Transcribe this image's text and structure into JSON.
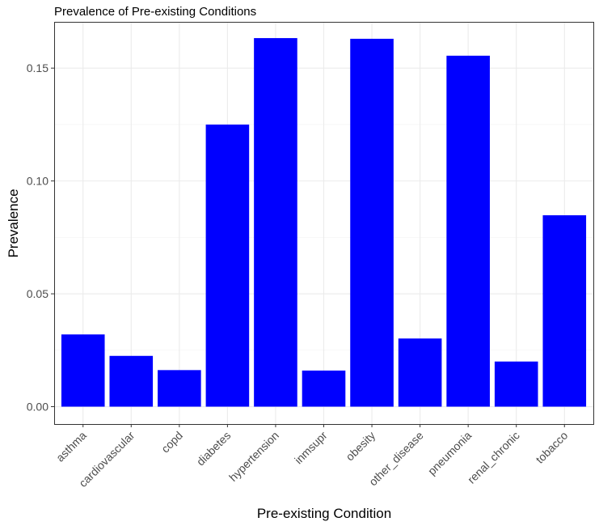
{
  "chart_data": {
    "type": "bar",
    "title": "Prevalence of Pre-existing Conditions",
    "xlabel": "Pre-existing Condition",
    "ylabel": "Prevalence",
    "categories": [
      "asthma",
      "cardiovascular",
      "copd",
      "diabetes",
      "hypertension",
      "inmsupr",
      "obesity",
      "other_disease",
      "pneumonia",
      "renal_chronic",
      "tobacco"
    ],
    "values": [
      0.032,
      0.0225,
      0.0162,
      0.125,
      0.1633,
      0.016,
      0.163,
      0.0302,
      0.1555,
      0.02,
      0.0848
    ],
    "ylim": [
      -0.0077,
      0.1705
    ],
    "yticks": [
      0.0,
      0.05,
      0.1,
      0.15
    ],
    "ytick_labels": [
      "0.00",
      "0.05",
      "0.10",
      "0.15"
    ],
    "bar_color": "#0000FF",
    "grid": true,
    "legend": "none"
  }
}
